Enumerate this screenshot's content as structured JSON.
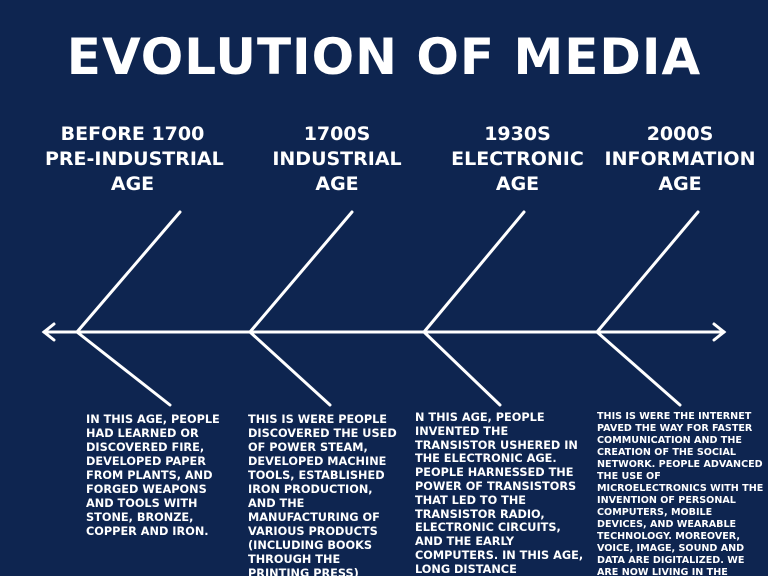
{
  "title": "EVOLUTION OF MEDIA",
  "colors": {
    "background": "#0e2550",
    "foreground": "#ffffff"
  },
  "eras": [
    {
      "lines": [
        "BEFORE 1700",
        "PRE-INDUSTRIAL",
        "AGE"
      ],
      "description": "IN THIS AGE, PEOPLE HAD LEARNED OR DISCOVERED FIRE, DEVELOPED PAPER FROM PLANTS, AND FORGED WEAPONS AND TOOLS WITH STONE, BRONZE, COPPER AND IRON."
    },
    {
      "lines": [
        "1700S",
        "INDUSTRIAL",
        "AGE"
      ],
      "description": "THIS IS WERE PEOPLE DISCOVERED THE USED OF POWER STEAM, DEVELOPED MACHINE TOOLS, ESTABLISHED IRON PRODUCTION, AND THE MANUFACTURING OF VARIOUS PRODUCTS (INCLUDING BOOKS THROUGH THE PRINTING PRESS)"
    },
    {
      "lines": [
        "1930S",
        "ELECTRONIC",
        "AGE"
      ],
      "description": "N THIS AGE, PEOPLE INVENTED THE TRANSISTOR USHERED IN THE ELECTRONIC AGE. PEOPLE HARNESSED THE POWER OF TRANSISTORS THAT LED TO THE TRANSISTOR RADIO, ELECTRONIC CIRCUITS, AND THE EARLY COMPUTERS. IN THIS AGE, LONG DISTANCE COMMUNICATION BECAME MORE EFFICIENT."
    },
    {
      "lines": [
        "2000S",
        "INFORMATION",
        "AGE"
      ],
      "description": "THIS IS WERE THE INTERNET PAVED THE WAY FOR FASTER COMMUNICATION AND THE CREATION OF THE SOCIAL NETWORK. PEOPLE ADVANCED THE USE OF MICROELECTRONICS WITH THE INVENTION OF PERSONAL COMPUTERS, MOBILE DEVICES, AND WEARABLE TECHNOLOGY. MOREOVER, VOICE, IMAGE, SOUND AND DATA ARE DIGITALIZED. WE ARE NOW LIVING IN THE INFORMATION AGE."
    }
  ]
}
